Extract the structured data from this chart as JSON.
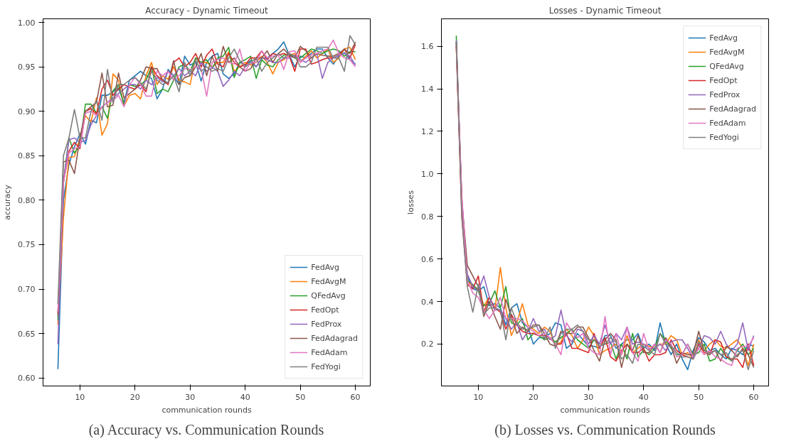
{
  "chart_data": [
    {
      "type": "line",
      "title": "Accuracy - Dynamic Timeout",
      "xlabel": "communication rounds",
      "ylabel": "accuracy",
      "annotations": [
        "(a) Accuracy vs. Communication Rounds"
      ],
      "legend": "bottom right",
      "grid": false,
      "xlim": [
        3.3,
        62.7
      ],
      "ylim": [
        0.591,
        1.004
      ],
      "xticks": [
        10,
        20,
        30,
        40,
        50,
        60
      ],
      "yticks": [
        {
          "value": 0.6,
          "label": "0.60"
        },
        {
          "value": 0.65,
          "label": "0.65"
        },
        {
          "value": 0.7,
          "label": "0.70"
        },
        {
          "value": 0.75,
          "label": "0.75"
        },
        {
          "value": 0.8,
          "label": "0.80"
        },
        {
          "value": 0.85,
          "label": "0.85"
        },
        {
          "value": 0.9,
          "label": "0.90"
        },
        {
          "value": 0.95,
          "label": "0.95"
        },
        {
          "value": 1.0,
          "label": "1.00"
        }
      ],
      "x": [
        6,
        7,
        8,
        9,
        10,
        11,
        12,
        13,
        14,
        15,
        16,
        17,
        18,
        19,
        20,
        21,
        22,
        23,
        24,
        25,
        26,
        27,
        28,
        29,
        30,
        31,
        32,
        33,
        34,
        35,
        36,
        37,
        38,
        39,
        40,
        41,
        42,
        43,
        44,
        45,
        46,
        47,
        48,
        49,
        50,
        51,
        52,
        53,
        54,
        55,
        56,
        57,
        58,
        59,
        60
      ],
      "series": [
        {
          "name": "FedAvg",
          "color": "#1f77b4",
          "values": [
            0.61,
            0.8,
            0.84,
            0.86,
            0.875,
            0.863,
            0.89,
            0.887,
            0.918,
            0.918,
            0.922,
            0.926,
            0.91,
            0.935,
            0.94,
            0.945,
            0.94,
            0.937,
            0.914,
            0.925,
            0.947,
            0.94,
            0.93,
            0.962,
            0.952,
            0.955,
            0.934,
            0.955,
            0.962,
            0.965,
            0.942,
            0.937,
            0.942,
            0.955,
            0.952,
            0.957,
            0.95,
            0.96,
            0.96,
            0.965,
            0.97,
            0.978,
            0.963,
            0.95,
            0.962,
            0.96,
            0.965,
            0.97,
            0.97,
            0.96,
            0.953,
            0.962,
            0.966,
            0.958,
            0.953
          ]
        },
        {
          "name": "FedAvgM",
          "color": "#ff7f0e",
          "values": [
            0.66,
            0.78,
            0.848,
            0.849,
            0.87,
            0.895,
            0.888,
            0.915,
            0.873,
            0.886,
            0.942,
            0.935,
            0.906,
            0.918,
            0.92,
            0.914,
            0.94,
            0.955,
            0.93,
            0.94,
            0.936,
            0.95,
            0.935,
            0.933,
            0.93,
            0.96,
            0.955,
            0.955,
            0.95,
            0.955,
            0.955,
            0.967,
            0.945,
            0.95,
            0.955,
            0.952,
            0.955,
            0.962,
            0.955,
            0.942,
            0.955,
            0.958,
            0.963,
            0.965,
            0.955,
            0.962,
            0.968,
            0.96,
            0.965,
            0.97,
            0.955,
            0.96,
            0.97,
            0.972,
            0.958
          ]
        },
        {
          "name": "QFedAvg",
          "color": "#2ca02c",
          "values": [
            0.665,
            0.82,
            0.87,
            0.853,
            0.862,
            0.908,
            0.908,
            0.898,
            0.905,
            0.892,
            0.923,
            0.93,
            0.907,
            0.93,
            0.928,
            0.93,
            0.935,
            0.95,
            0.92,
            0.925,
            0.922,
            0.935,
            0.95,
            0.953,
            0.945,
            0.96,
            0.955,
            0.958,
            0.948,
            0.96,
            0.962,
            0.972,
            0.938,
            0.955,
            0.958,
            0.962,
            0.937,
            0.958,
            0.952,
            0.95,
            0.958,
            0.963,
            0.965,
            0.96,
            0.96,
            0.965,
            0.97,
            0.968,
            0.965,
            0.968,
            0.97,
            0.968,
            0.962,
            0.967,
            0.967
          ]
        },
        {
          "name": "FedOpt",
          "color": "#d62728",
          "values": [
            0.673,
            0.82,
            0.855,
            0.865,
            0.858,
            0.9,
            0.903,
            0.897,
            0.925,
            0.935,
            0.918,
            0.925,
            0.93,
            0.927,
            0.925,
            0.93,
            0.922,
            0.95,
            0.94,
            0.935,
            0.93,
            0.955,
            0.96,
            0.95,
            0.955,
            0.965,
            0.95,
            0.963,
            0.97,
            0.953,
            0.95,
            0.965,
            0.955,
            0.95,
            0.952,
            0.96,
            0.96,
            0.968,
            0.958,
            0.965,
            0.963,
            0.965,
            0.962,
            0.945,
            0.97,
            0.97,
            0.953,
            0.955,
            0.958,
            0.96,
            0.96,
            0.963,
            0.97,
            0.96,
            0.975
          ]
        },
        {
          "name": "FedProx",
          "color": "#9467bd",
          "values": [
            0.638,
            0.82,
            0.868,
            0.87,
            0.865,
            0.867,
            0.885,
            0.895,
            0.905,
            0.91,
            0.915,
            0.92,
            0.925,
            0.93,
            0.93,
            0.925,
            0.935,
            0.93,
            0.938,
            0.933,
            0.945,
            0.94,
            0.948,
            0.94,
            0.945,
            0.94,
            0.955,
            0.945,
            0.95,
            0.945,
            0.928,
            0.935,
            0.945,
            0.94,
            0.95,
            0.955,
            0.95,
            0.96,
            0.958,
            0.955,
            0.955,
            0.96,
            0.96,
            0.963,
            0.958,
            0.955,
            0.96,
            0.965,
            0.937,
            0.955,
            0.96,
            0.963,
            0.965,
            0.962,
            0.952
          ]
        },
        {
          "name": "FedAdagrad",
          "color": "#8c564b",
          "values": [
            0.67,
            0.843,
            0.845,
            0.83,
            0.87,
            0.9,
            0.905,
            0.91,
            0.943,
            0.905,
            0.907,
            0.943,
            0.915,
            0.92,
            0.925,
            0.935,
            0.95,
            0.948,
            0.948,
            0.935,
            0.932,
            0.957,
            0.93,
            0.938,
            0.94,
            0.95,
            0.965,
            0.94,
            0.962,
            0.945,
            0.973,
            0.955,
            0.96,
            0.95,
            0.945,
            0.948,
            0.96,
            0.96,
            0.968,
            0.955,
            0.965,
            0.97,
            0.963,
            0.96,
            0.973,
            0.968,
            0.96,
            0.965,
            0.963,
            0.962,
            0.962,
            0.965,
            0.97,
            0.965,
            0.978
          ]
        },
        {
          "name": "FedAdam",
          "color": "#e377c2",
          "values": [
            0.675,
            0.82,
            0.853,
            0.858,
            0.86,
            0.898,
            0.9,
            0.895,
            0.905,
            0.91,
            0.912,
            0.918,
            0.905,
            0.93,
            0.938,
            0.93,
            0.917,
            0.917,
            0.945,
            0.94,
            0.945,
            0.935,
            0.94,
            0.948,
            0.947,
            0.95,
            0.948,
            0.917,
            0.955,
            0.958,
            0.96,
            0.955,
            0.953,
            0.97,
            0.945,
            0.955,
            0.955,
            0.968,
            0.96,
            0.962,
            0.963,
            0.947,
            0.967,
            0.968,
            0.955,
            0.96,
            0.963,
            0.965,
            0.968,
            0.97,
            0.98,
            0.965,
            0.96,
            0.958,
            0.95
          ]
        },
        {
          "name": "FedYogi",
          "color": "#7f7f7f",
          "values": [
            0.683,
            0.85,
            0.87,
            0.902,
            0.87,
            0.87,
            0.9,
            0.912,
            0.89,
            0.947,
            0.91,
            0.93,
            0.93,
            0.935,
            0.938,
            0.932,
            0.925,
            0.945,
            0.935,
            0.93,
            0.933,
            0.94,
            0.922,
            0.955,
            0.94,
            0.958,
            0.945,
            0.95,
            0.945,
            0.948,
            0.945,
            0.96,
            0.97,
            0.957,
            0.95,
            0.955,
            0.96,
            0.945,
            0.955,
            0.96,
            0.965,
            0.96,
            0.965,
            0.962,
            0.95,
            0.95,
            0.955,
            0.972,
            0.972,
            0.972,
            0.96,
            0.96,
            0.945,
            0.985,
            0.975
          ]
        }
      ]
    },
    {
      "type": "line",
      "title": "Losses - Dynamic Timeout",
      "xlabel": "communication rounds",
      "ylabel": "losses",
      "annotations": [
        "(b) Losses vs. Communication Rounds"
      ],
      "legend": "top right",
      "grid": false,
      "xlim": [
        3.3,
        62.7
      ],
      "ylim": [
        0.003,
        1.729
      ],
      "xticks": [
        10,
        20,
        30,
        40,
        50,
        60
      ],
      "yticks": [
        0.2,
        0.4,
        0.6,
        0.8,
        {
          "value": 1.0,
          "label": "1.0"
        },
        1.2,
        1.4,
        1.6
      ],
      "x": [
        6,
        7,
        8,
        9,
        10,
        11,
        12,
        13,
        14,
        15,
        16,
        17,
        18,
        19,
        20,
        21,
        22,
        23,
        24,
        25,
        26,
        27,
        28,
        29,
        30,
        31,
        32,
        33,
        34,
        35,
        36,
        37,
        38,
        39,
        40,
        41,
        42,
        43,
        44,
        45,
        46,
        47,
        48,
        49,
        50,
        51,
        52,
        53,
        54,
        55,
        56,
        57,
        58,
        59,
        60
      ],
      "series": [
        {
          "name": "FedAvg",
          "color": "#1f77b4",
          "values": [
            1.62,
            0.85,
            0.52,
            0.46,
            0.45,
            0.47,
            0.38,
            0.39,
            0.37,
            0.29,
            0.37,
            0.39,
            0.3,
            0.28,
            0.2,
            0.23,
            0.23,
            0.25,
            0.3,
            0.29,
            0.18,
            0.2,
            0.25,
            0.22,
            0.19,
            0.19,
            0.18,
            0.24,
            0.24,
            0.18,
            0.2,
            0.22,
            0.22,
            0.25,
            0.18,
            0.2,
            0.17,
            0.3,
            0.2,
            0.15,
            0.2,
            0.13,
            0.08,
            0.17,
            0.23,
            0.21,
            0.17,
            0.18,
            0.15,
            0.13,
            0.18,
            0.17,
            0.15,
            0.2,
            0.19
          ]
        },
        {
          "name": "FedAvgM",
          "color": "#ff7f0e",
          "values": [
            1.6,
            0.85,
            0.5,
            0.47,
            0.46,
            0.38,
            0.42,
            0.36,
            0.56,
            0.37,
            0.24,
            0.3,
            0.39,
            0.29,
            0.27,
            0.25,
            0.28,
            0.26,
            0.19,
            0.21,
            0.27,
            0.24,
            0.18,
            0.22,
            0.28,
            0.24,
            0.15,
            0.17,
            0.18,
            0.2,
            0.15,
            0.24,
            0.16,
            0.18,
            0.2,
            0.19,
            0.18,
            0.2,
            0.2,
            0.24,
            0.22,
            0.15,
            0.16,
            0.13,
            0.22,
            0.17,
            0.2,
            0.22,
            0.19,
            0.18,
            0.2,
            0.22,
            0.18,
            0.1,
            0.2
          ]
        },
        {
          "name": "QFedAvg",
          "color": "#2ca02c",
          "values": [
            1.65,
            0.85,
            0.5,
            0.48,
            0.45,
            0.38,
            0.39,
            0.45,
            0.37,
            0.47,
            0.3,
            0.29,
            0.32,
            0.22,
            0.25,
            0.24,
            0.22,
            0.23,
            0.21,
            0.23,
            0.25,
            0.27,
            0.22,
            0.2,
            0.18,
            0.22,
            0.2,
            0.2,
            0.21,
            0.13,
            0.2,
            0.13,
            0.25,
            0.14,
            0.17,
            0.15,
            0.18,
            0.25,
            0.22,
            0.18,
            0.15,
            0.15,
            0.2,
            0.15,
            0.16,
            0.2,
            0.12,
            0.13,
            0.18,
            0.14,
            0.12,
            0.17,
            0.2,
            0.15,
            0.18
          ]
        },
        {
          "name": "FedOpt",
          "color": "#d62728",
          "values": [
            1.6,
            0.8,
            0.48,
            0.46,
            0.52,
            0.35,
            0.42,
            0.37,
            0.35,
            0.27,
            0.34,
            0.29,
            0.26,
            0.25,
            0.25,
            0.24,
            0.24,
            0.23,
            0.2,
            0.2,
            0.25,
            0.18,
            0.18,
            0.17,
            0.16,
            0.25,
            0.18,
            0.23,
            0.14,
            0.12,
            0.17,
            0.2,
            0.16,
            0.16,
            0.18,
            0.12,
            0.15,
            0.15,
            0.16,
            0.22,
            0.17,
            0.15,
            0.14,
            0.13,
            0.2,
            0.16,
            0.15,
            0.22,
            0.21,
            0.14,
            0.13,
            0.13,
            0.09,
            0.2,
            0.1
          ]
        },
        {
          "name": "FedProx",
          "color": "#9467bd",
          "values": [
            1.63,
            0.88,
            0.53,
            0.47,
            0.45,
            0.52,
            0.42,
            0.36,
            0.36,
            0.32,
            0.27,
            0.3,
            0.22,
            0.26,
            0.32,
            0.26,
            0.27,
            0.22,
            0.24,
            0.36,
            0.24,
            0.21,
            0.27,
            0.26,
            0.2,
            0.24,
            0.2,
            0.29,
            0.2,
            0.25,
            0.22,
            0.28,
            0.2,
            0.21,
            0.2,
            0.18,
            0.18,
            0.2,
            0.17,
            0.21,
            0.22,
            0.22,
            0.18,
            0.13,
            0.18,
            0.24,
            0.23,
            0.2,
            0.26,
            0.2,
            0.17,
            0.2,
            0.3,
            0.17,
            0.24
          ]
        },
        {
          "name": "FedAdagrad",
          "color": "#8c564b",
          "values": [
            1.62,
            0.88,
            0.57,
            0.52,
            0.47,
            0.33,
            0.4,
            0.33,
            0.27,
            0.41,
            0.33,
            0.25,
            0.28,
            0.26,
            0.29,
            0.29,
            0.25,
            0.2,
            0.19,
            0.26,
            0.25,
            0.25,
            0.28,
            0.28,
            0.23,
            0.17,
            0.12,
            0.22,
            0.25,
            0.22,
            0.09,
            0.2,
            0.17,
            0.24,
            0.16,
            0.16,
            0.2,
            0.16,
            0.23,
            0.19,
            0.11,
            0.16,
            0.15,
            0.15,
            0.26,
            0.17,
            0.16,
            0.17,
            0.12,
            0.19,
            0.17,
            0.14,
            0.18,
            0.15,
            0.09
          ]
        },
        {
          "name": "FedAdam",
          "color": "#e377c2",
          "values": [
            1.6,
            0.9,
            0.5,
            0.44,
            0.42,
            0.36,
            0.32,
            0.36,
            0.42,
            0.32,
            0.32,
            0.32,
            0.31,
            0.28,
            0.26,
            0.24,
            0.25,
            0.23,
            0.2,
            0.15,
            0.3,
            0.26,
            0.23,
            0.25,
            0.18,
            0.16,
            0.15,
            0.33,
            0.15,
            0.25,
            0.15,
            0.28,
            0.16,
            0.12,
            0.25,
            0.17,
            0.2,
            0.16,
            0.22,
            0.2,
            0.14,
            0.15,
            0.2,
            0.14,
            0.18,
            0.15,
            0.17,
            0.14,
            0.13,
            0.11,
            0.1,
            0.18,
            0.19,
            0.19,
            0.23
          ]
        },
        {
          "name": "FedYogi",
          "color": "#7f7f7f",
          "values": [
            1.62,
            0.8,
            0.47,
            0.35,
            0.48,
            0.34,
            0.37,
            0.37,
            0.36,
            0.22,
            0.37,
            0.3,
            0.27,
            0.27,
            0.28,
            0.29,
            0.22,
            0.28,
            0.18,
            0.25,
            0.27,
            0.27,
            0.29,
            0.26,
            0.22,
            0.22,
            0.19,
            0.2,
            0.23,
            0.21,
            0.13,
            0.15,
            0.11,
            0.2,
            0.19,
            0.17,
            0.15,
            0.25,
            0.2,
            0.19,
            0.16,
            0.14,
            0.14,
            0.13,
            0.21,
            0.17,
            0.15,
            0.17,
            0.15,
            0.16,
            0.12,
            0.15,
            0.17,
            0.08,
            0.17
          ]
        }
      ]
    }
  ]
}
